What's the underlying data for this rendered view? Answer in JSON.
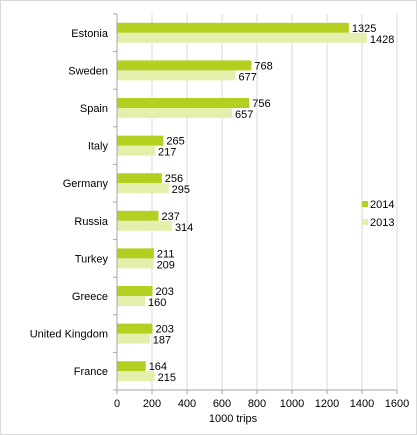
{
  "chart_data": {
    "type": "bar",
    "orientation": "horizontal",
    "categories": [
      "Estonia",
      "Sweden",
      "Spain",
      "Italy",
      "Germany",
      "Russia",
      "Turkey",
      "Greece",
      "United Kingdom",
      "France"
    ],
    "series": [
      {
        "name": "2014",
        "values": [
          1325,
          768,
          756,
          265,
          256,
          237,
          211,
          203,
          203,
          164
        ],
        "color": "#b5cf20"
      },
      {
        "name": "2013",
        "values": [
          1428,
          677,
          657,
          217,
          295,
          314,
          209,
          160,
          187,
          215
        ],
        "color": "#e3efaa"
      }
    ],
    "xlabel": "1000 trips",
    "xlim": [
      0,
      1600
    ],
    "xticks": [
      0,
      200,
      400,
      600,
      800,
      1000,
      1200,
      1400,
      1600
    ],
    "grid": true,
    "legend_position": "right",
    "legend_order": [
      "2014",
      "2013"
    ],
    "gridline_color": "#d9d9d9",
    "axis_color": "#a6a6a6"
  }
}
